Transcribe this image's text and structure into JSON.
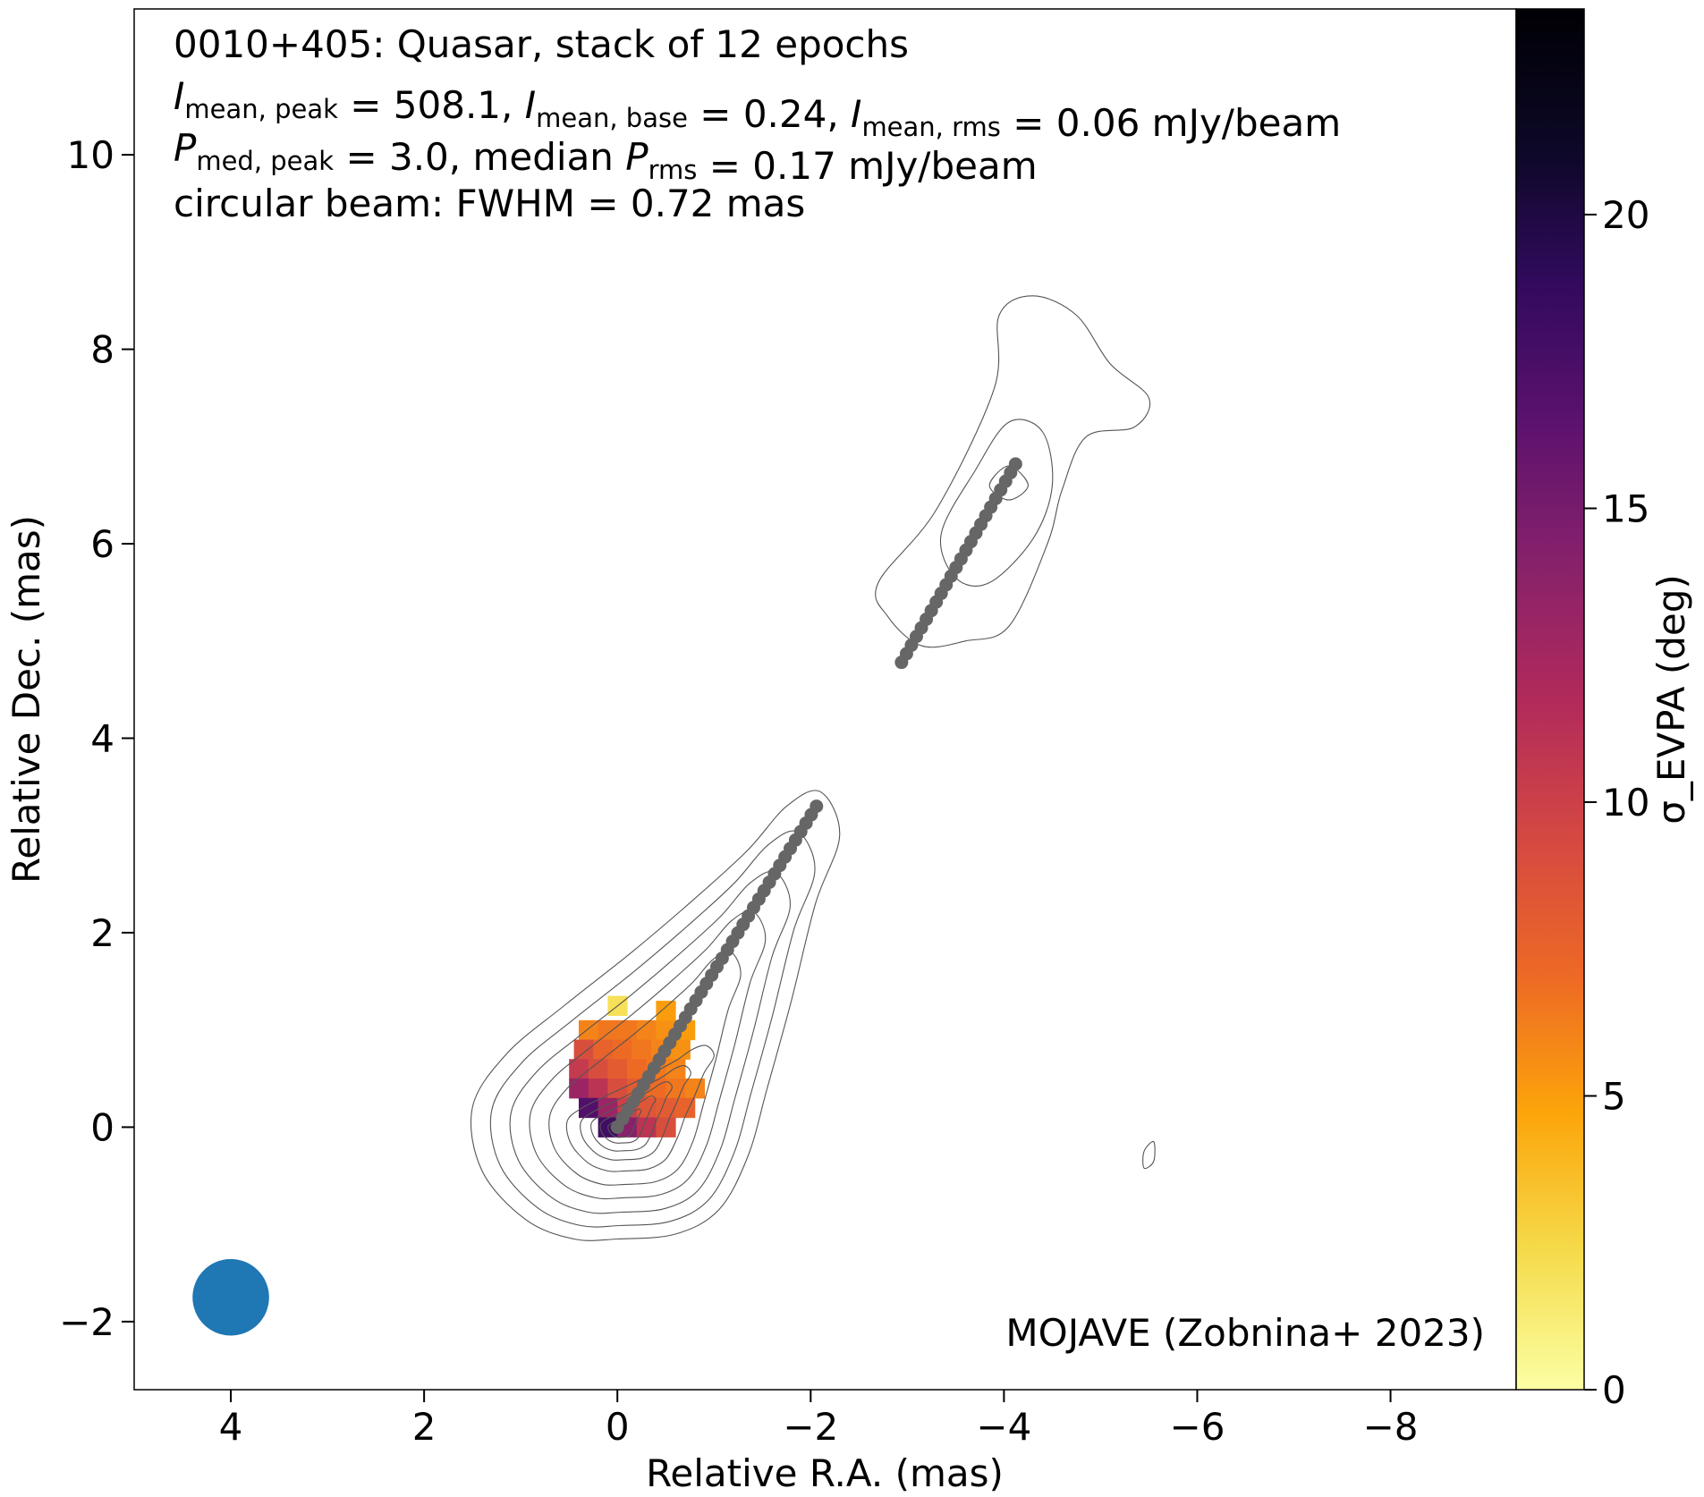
{
  "chart_data": {
    "type": "heatmap",
    "title_lines": [
      "0010+405: Quasar, stack of 12 epochs",
      "I_mean,peak = 508.1, I_mean,base = 0.24, I_mean,rms = 0.06 mJy/beam",
      "P_med,peak = 3.0, median P_rms = 0.17 mJy/beam",
      "circular beam: FWHM = 0.72 mas"
    ],
    "source": "0010+405",
    "source_type": "Quasar",
    "epochs": 12,
    "I_mean_peak": 508.1,
    "I_mean_base": 0.24,
    "I_mean_rms": 0.06,
    "P_med_peak": 3.0,
    "median_P_rms": 0.17,
    "flux_unit": "mJy/beam",
    "beam_fwhm_mas": 0.72,
    "credit": "MOJAVE (Zobnina+ 2023)",
    "xlabel": "Relative R.A. (mas)",
    "ylabel": "Relative Dec. (mas)",
    "xlim": [
      5,
      -9.3
    ],
    "ylim": [
      -2.7,
      11.5
    ],
    "x_ticks": [
      4,
      2,
      0,
      -2,
      -4,
      -6,
      -8
    ],
    "x_tick_labels": [
      "4",
      "2",
      "0",
      "−2",
      "−4",
      "−6",
      "−8"
    ],
    "y_ticks": [
      -2,
      0,
      2,
      4,
      6,
      8,
      10
    ],
    "y_tick_labels": [
      "−2",
      "0",
      "2",
      "4",
      "6",
      "8",
      "10"
    ],
    "colorbar": {
      "label": "σ_EVPA (deg)",
      "range": [
        0,
        23.5
      ],
      "ticks": [
        0,
        5,
        10,
        15,
        20
      ],
      "tick_labels": [
        "0",
        "5",
        "10",
        "15",
        "20"
      ],
      "colormap": [
        "#fcffa4",
        "#f5db4b",
        "#fca50a",
        "#ed6925",
        "#d44842",
        "#b12a5b",
        "#87216b",
        "#5c126e",
        "#320a5e",
        "#0c0826",
        "#000004"
      ]
    },
    "ridgelines": [
      {
        "start": [
          0.0,
          0.0
        ],
        "end": [
          -2.06,
          3.3
        ],
        "color": "#666666"
      },
      {
        "start": [
          -2.94,
          4.78
        ],
        "end": [
          -4.12,
          6.82
        ],
        "color": "#666666"
      }
    ],
    "beam": {
      "ra": 4.0,
      "dec": -1.75,
      "diameter_mas": 0.72,
      "color": "#1f77b4"
    },
    "intensity_contours": [
      {
        "cx": 0.0,
        "cy": 0.0,
        "scale": 1.0,
        "color": "#555555"
      },
      {
        "cx": -0.02,
        "cy": 0.0,
        "scale": 0.88,
        "color": "#555555"
      },
      {
        "cx": -0.04,
        "cy": 0.0,
        "scale": 0.76,
        "color": "#555555"
      },
      {
        "cx": -0.06,
        "cy": 0.01,
        "scale": 0.64,
        "color": "#555555"
      },
      {
        "cx": -0.08,
        "cy": 0.01,
        "scale": 0.52,
        "color": "#555555"
      },
      {
        "cx": -0.08,
        "cy": 0.01,
        "scale": 0.4,
        "color": "#555555"
      },
      {
        "cx": -0.07,
        "cy": 0.01,
        "scale": 0.3,
        "color": "#555555"
      },
      {
        "cx": -0.06,
        "cy": 0.01,
        "scale": 0.22,
        "color": "#555555"
      },
      {
        "cx": -0.05,
        "cy": 0.01,
        "scale": 0.15,
        "color": "#555555"
      },
      {
        "cx": -0.04,
        "cy": 0.0,
        "scale": 0.09,
        "color": "#555555"
      }
    ],
    "evpa_uncertainty_pixels": [
      {
        "ra": 0.3,
        "dec": 1.0,
        "value": 6
      },
      {
        "ra": 0.1,
        "dec": 1.0,
        "value": 6.5
      },
      {
        "ra": -0.1,
        "dec": 1.0,
        "value": 6.5
      },
      {
        "ra": -0.3,
        "dec": 1.0,
        "value": 6
      },
      {
        "ra": -0.5,
        "dec": 1.0,
        "value": 5.5
      },
      {
        "ra": -0.7,
        "dec": 1.0,
        "value": 5
      },
      {
        "ra": 0.35,
        "dec": 0.8,
        "value": 9
      },
      {
        "ra": 0.15,
        "dec": 0.8,
        "value": 7.5
      },
      {
        "ra": -0.05,
        "dec": 0.8,
        "value": 7
      },
      {
        "ra": -0.25,
        "dec": 0.8,
        "value": 6.5
      },
      {
        "ra": -0.45,
        "dec": 0.8,
        "value": 6
      },
      {
        "ra": -0.65,
        "dec": 0.8,
        "value": 5.5
      },
      {
        "ra": 0.4,
        "dec": 0.6,
        "value": 10.5
      },
      {
        "ra": 0.2,
        "dec": 0.6,
        "value": 9
      },
      {
        "ra": 0.0,
        "dec": 0.6,
        "value": 8
      },
      {
        "ra": -0.2,
        "dec": 0.6,
        "value": 7
      },
      {
        "ra": -0.4,
        "dec": 0.6,
        "value": 6.5
      },
      {
        "ra": -0.6,
        "dec": 0.6,
        "value": 6
      },
      {
        "ra": 0.4,
        "dec": 0.4,
        "value": 13
      },
      {
        "ra": 0.2,
        "dec": 0.4,
        "value": 11
      },
      {
        "ra": 0.0,
        "dec": 0.4,
        "value": 9
      },
      {
        "ra": -0.2,
        "dec": 0.4,
        "value": 8
      },
      {
        "ra": -0.4,
        "dec": 0.4,
        "value": 7
      },
      {
        "ra": -0.6,
        "dec": 0.4,
        "value": 6.5
      },
      {
        "ra": -0.8,
        "dec": 0.4,
        "value": 6
      },
      {
        "ra": 0.3,
        "dec": 0.2,
        "value": 17
      },
      {
        "ra": 0.1,
        "dec": 0.2,
        "value": 13
      },
      {
        "ra": -0.1,
        "dec": 0.2,
        "value": 10
      },
      {
        "ra": -0.3,
        "dec": 0.2,
        "value": 8.5
      },
      {
        "ra": -0.5,
        "dec": 0.2,
        "value": 8
      },
      {
        "ra": -0.7,
        "dec": 0.2,
        "value": 7.5
      },
      {
        "ra": 0.1,
        "dec": 0.0,
        "value": 18
      },
      {
        "ra": -0.1,
        "dec": 0.0,
        "value": 14
      },
      {
        "ra": -0.3,
        "dec": 0.0,
        "value": 11
      },
      {
        "ra": -0.5,
        "dec": 0.0,
        "value": 9
      },
      {
        "ra": 0.0,
        "dec": 1.25,
        "value": 2
      },
      {
        "ra": -0.5,
        "dec": 1.2,
        "value": 5
      }
    ]
  }
}
